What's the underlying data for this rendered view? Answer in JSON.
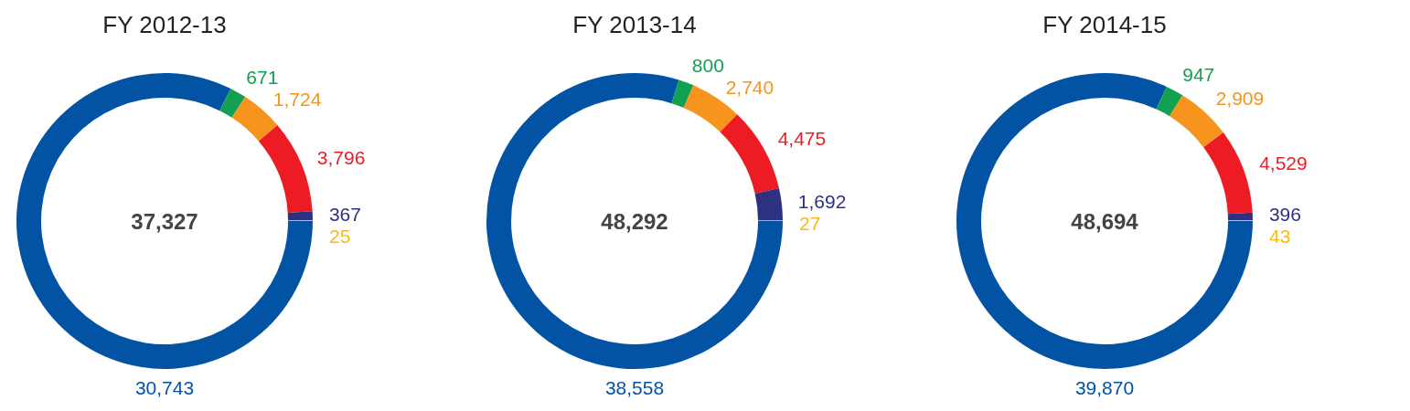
{
  "chart_data": [
    {
      "type": "donut",
      "title": "FY 2012-13",
      "categories": [
        null,
        null,
        null,
        null,
        null,
        null
      ],
      "values": [
        30743,
        671,
        1724,
        3796,
        367,
        25
      ],
      "colors": [
        "#0353a4",
        "#12a150",
        "#f7941d",
        "#ed1c24",
        "#2e3180",
        "#fdb913"
      ],
      "value_labels": [
        "30,743",
        "671",
        "1,724",
        "3,796",
        "367",
        "25"
      ],
      "annotations": [
        "37,327"
      ]
    },
    {
      "type": "donut",
      "title": "FY 2013-14",
      "categories": [
        null,
        null,
        null,
        null,
        null,
        null
      ],
      "values": [
        38558,
        800,
        2740,
        4475,
        1692,
        27
      ],
      "colors": [
        "#0353a4",
        "#12a150",
        "#f7941d",
        "#ed1c24",
        "#2e3180",
        "#fdb913"
      ],
      "value_labels": [
        "38,558",
        "800",
        "2,740",
        "4,475",
        "1,692",
        "27"
      ],
      "annotations": [
        "48,292"
      ]
    },
    {
      "type": "donut",
      "title": "FY 2014-15",
      "categories": [
        null,
        null,
        null,
        null,
        null,
        null
      ],
      "values": [
        39870,
        947,
        2909,
        4529,
        396,
        43
      ],
      "colors": [
        "#0353a4",
        "#12a150",
        "#f7941d",
        "#ed1c24",
        "#2e3180",
        "#fdb913"
      ],
      "value_labels": [
        "39,870",
        "947",
        "2,909",
        "4,529",
        "396",
        "43"
      ],
      "annotations": [
        "48,694"
      ]
    }
  ]
}
